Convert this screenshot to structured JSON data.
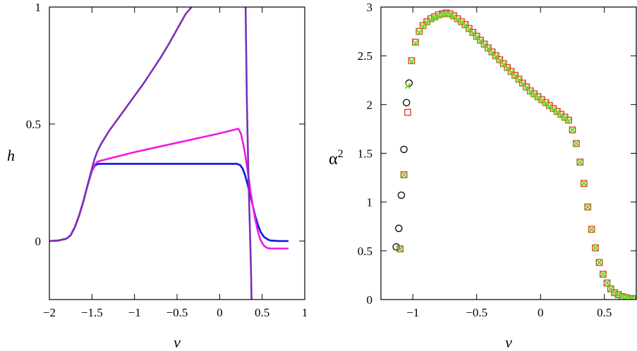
{
  "chart_data": [
    {
      "type": "line",
      "panel": "left",
      "xlabel": "v",
      "ylabel": "h",
      "xlim": [
        -2,
        1
      ],
      "ylim": [
        -0.25,
        1
      ],
      "xticks": [
        -2,
        -1.5,
        -1,
        -0.5,
        0,
        0.5,
        1
      ],
      "xtick_labels": [
        "−2",
        "−1.5",
        "−1",
        "−0.5",
        "0",
        "0.5",
        "1"
      ],
      "yticks": [
        0,
        0.5,
        1
      ],
      "ytick_labels": [
        "0",
        "0.5",
        "1"
      ],
      "series": [
        {
          "name": "blue",
          "color": "#0a14e6",
          "x": [
            -2.0,
            -1.9,
            -1.8,
            -1.75,
            -1.7,
            -1.65,
            -1.6,
            -1.55,
            -1.5,
            -1.47,
            -1.44,
            -1.42,
            -1.4,
            -1.2,
            -1.0,
            -0.5,
            0.0,
            0.2,
            0.24,
            0.27,
            0.3,
            0.33,
            0.36,
            0.38,
            0.4,
            0.42,
            0.45,
            0.48,
            0.52,
            0.57,
            0.6,
            0.7,
            0.8
          ],
          "y": [
            0.0,
            0.002,
            0.01,
            0.025,
            0.06,
            0.11,
            0.17,
            0.24,
            0.3,
            0.32,
            0.328,
            0.33,
            0.33,
            0.33,
            0.33,
            0.33,
            0.33,
            0.33,
            0.325,
            0.31,
            0.28,
            0.24,
            0.195,
            0.165,
            0.135,
            0.105,
            0.07,
            0.04,
            0.018,
            0.006,
            0.002,
            0.0,
            0.0
          ]
        },
        {
          "name": "magenta",
          "color": "#f018e6",
          "x": [
            -2.0,
            -1.9,
            -1.8,
            -1.75,
            -1.7,
            -1.65,
            -1.6,
            -1.55,
            -1.5,
            -1.47,
            -1.44,
            -1.42,
            -1.4,
            -1.0,
            -0.5,
            0.0,
            0.2,
            0.22,
            0.25,
            0.28,
            0.3,
            0.33,
            0.36,
            0.39,
            0.42,
            0.45,
            0.48,
            0.52,
            0.56,
            0.6,
            0.7,
            0.8
          ],
          "y": [
            0.0,
            0.002,
            0.01,
            0.025,
            0.06,
            0.11,
            0.17,
            0.24,
            0.3,
            0.325,
            0.337,
            0.341,
            0.343,
            0.38,
            0.42,
            0.46,
            0.478,
            0.48,
            0.46,
            0.41,
            0.37,
            0.3,
            0.22,
            0.15,
            0.09,
            0.04,
            0.005,
            -0.02,
            -0.03,
            -0.032,
            -0.032,
            -0.032
          ]
        },
        {
          "name": "purple-left",
          "color": "#7b2fb8",
          "x": [
            -2.0,
            -1.9,
            -1.8,
            -1.75,
            -1.7,
            -1.65,
            -1.6,
            -1.55,
            -1.5,
            -1.47,
            -1.44,
            -1.42,
            -1.4,
            -1.3,
            -1.2,
            -1.1,
            -1.0,
            -0.9,
            -0.8,
            -0.7,
            -0.6,
            -0.5,
            -0.4,
            -0.33
          ],
          "y": [
            0.0,
            0.002,
            0.01,
            0.025,
            0.06,
            0.11,
            0.17,
            0.24,
            0.31,
            0.35,
            0.38,
            0.395,
            0.41,
            0.47,
            0.52,
            0.57,
            0.62,
            0.67,
            0.725,
            0.78,
            0.84,
            0.905,
            0.97,
            1.0
          ]
        },
        {
          "name": "purple-right",
          "color": "#7b2fb8",
          "x": [
            0.305,
            0.32,
            0.34,
            0.36,
            0.37,
            0.375
          ],
          "y": [
            1.0,
            0.6,
            0.25,
            0.0,
            -0.15,
            -0.25
          ]
        }
      ]
    },
    {
      "type": "scatter",
      "panel": "right",
      "xlabel": "v",
      "ylabel": "α",
      "ylabel_superscript": "2",
      "xlim": [
        -1.25,
        0.75
      ],
      "ylim": [
        0,
        3
      ],
      "xticks": [
        -1,
        -0.5,
        0,
        0.5
      ],
      "xtick_labels": [
        "−1",
        "−0.5",
        "0",
        "0.5"
      ],
      "yticks": [
        0,
        0.5,
        1,
        1.5,
        2,
        2.5,
        3
      ],
      "ytick_labels": [
        "0",
        "0.5",
        "1",
        "1.5",
        "2",
        "2.5",
        "3"
      ],
      "series": [
        {
          "name": "circles",
          "marker": "open-circle",
          "color": "#000000",
          "x": [
            -1.13,
            -1.11,
            -1.09,
            -1.07,
            -1.05,
            -1.03
          ],
          "y": [
            0.54,
            0.73,
            1.07,
            1.54,
            2.02,
            2.22
          ]
        },
        {
          "name": "squares",
          "marker": "open-square",
          "color": "#e0442c",
          "x": [
            -1.1,
            -1.07,
            -1.04,
            -1.01,
            -0.98,
            -0.95,
            -0.92,
            -0.89,
            -0.86,
            -0.83,
            -0.8,
            -0.77,
            -0.74,
            -0.71,
            -0.68,
            -0.65,
            -0.62,
            -0.59,
            -0.56,
            -0.53,
            -0.5,
            -0.47,
            -0.44,
            -0.41,
            -0.38,
            -0.35,
            -0.32,
            -0.29,
            -0.26,
            -0.23,
            -0.2,
            -0.17,
            -0.14,
            -0.11,
            -0.08,
            -0.05,
            -0.02,
            0.01,
            0.04,
            0.07,
            0.1,
            0.13,
            0.16,
            0.19,
            0.22,
            0.25,
            0.28,
            0.31,
            0.34,
            0.37,
            0.4,
            0.43,
            0.46,
            0.49,
            0.52,
            0.55,
            0.58,
            0.61,
            0.64,
            0.67,
            0.7,
            0.72
          ],
          "y": [
            0.52,
            1.28,
            1.92,
            2.45,
            2.64,
            2.75,
            2.81,
            2.85,
            2.88,
            2.9,
            2.92,
            2.93,
            2.94,
            2.93,
            2.91,
            2.88,
            2.85,
            2.82,
            2.78,
            2.74,
            2.7,
            2.66,
            2.62,
            2.58,
            2.54,
            2.5,
            2.46,
            2.42,
            2.38,
            2.34,
            2.3,
            2.26,
            2.22,
            2.18,
            2.14,
            2.11,
            2.08,
            2.05,
            2.02,
            1.99,
            1.96,
            1.93,
            1.9,
            1.87,
            1.84,
            1.74,
            1.6,
            1.41,
            1.19,
            0.95,
            0.72,
            0.53,
            0.38,
            0.26,
            0.17,
            0.11,
            0.07,
            0.05,
            0.03,
            0.02,
            0.01,
            0.01
          ]
        },
        {
          "name": "crosses",
          "marker": "cross",
          "color": "#66dd22",
          "x": [
            -1.1,
            -1.07,
            -1.04,
            -1.01,
            -0.98,
            -0.95,
            -0.92,
            -0.89,
            -0.86,
            -0.83,
            -0.8,
            -0.77,
            -0.74,
            -0.71,
            -0.68,
            -0.65,
            -0.62,
            -0.59,
            -0.56,
            -0.53,
            -0.5,
            -0.47,
            -0.44,
            -0.41,
            -0.38,
            -0.35,
            -0.32,
            -0.29,
            -0.26,
            -0.23,
            -0.2,
            -0.17,
            -0.14,
            -0.11,
            -0.08,
            -0.05,
            -0.02,
            0.01,
            0.04,
            0.07,
            0.1,
            0.13,
            0.16,
            0.19,
            0.22,
            0.25,
            0.28,
            0.31,
            0.34,
            0.37,
            0.4,
            0.43,
            0.46,
            0.49,
            0.52,
            0.55,
            0.58,
            0.61,
            0.64,
            0.67,
            0.7,
            0.72
          ],
          "y": [
            0.52,
            1.28,
            2.19,
            2.44,
            2.63,
            2.74,
            2.8,
            2.84,
            2.87,
            2.89,
            2.91,
            2.92,
            2.93,
            2.92,
            2.9,
            2.87,
            2.84,
            2.81,
            2.77,
            2.73,
            2.69,
            2.65,
            2.61,
            2.57,
            2.53,
            2.49,
            2.45,
            2.41,
            2.37,
            2.33,
            2.29,
            2.25,
            2.21,
            2.17,
            2.13,
            2.1,
            2.07,
            2.04,
            2.01,
            1.98,
            1.95,
            1.92,
            1.89,
            1.86,
            1.83,
            1.74,
            1.6,
            1.41,
            1.19,
            0.95,
            0.72,
            0.53,
            0.38,
            0.26,
            0.17,
            0.11,
            0.07,
            0.05,
            0.03,
            0.02,
            0.01,
            0.01
          ]
        }
      ]
    }
  ]
}
